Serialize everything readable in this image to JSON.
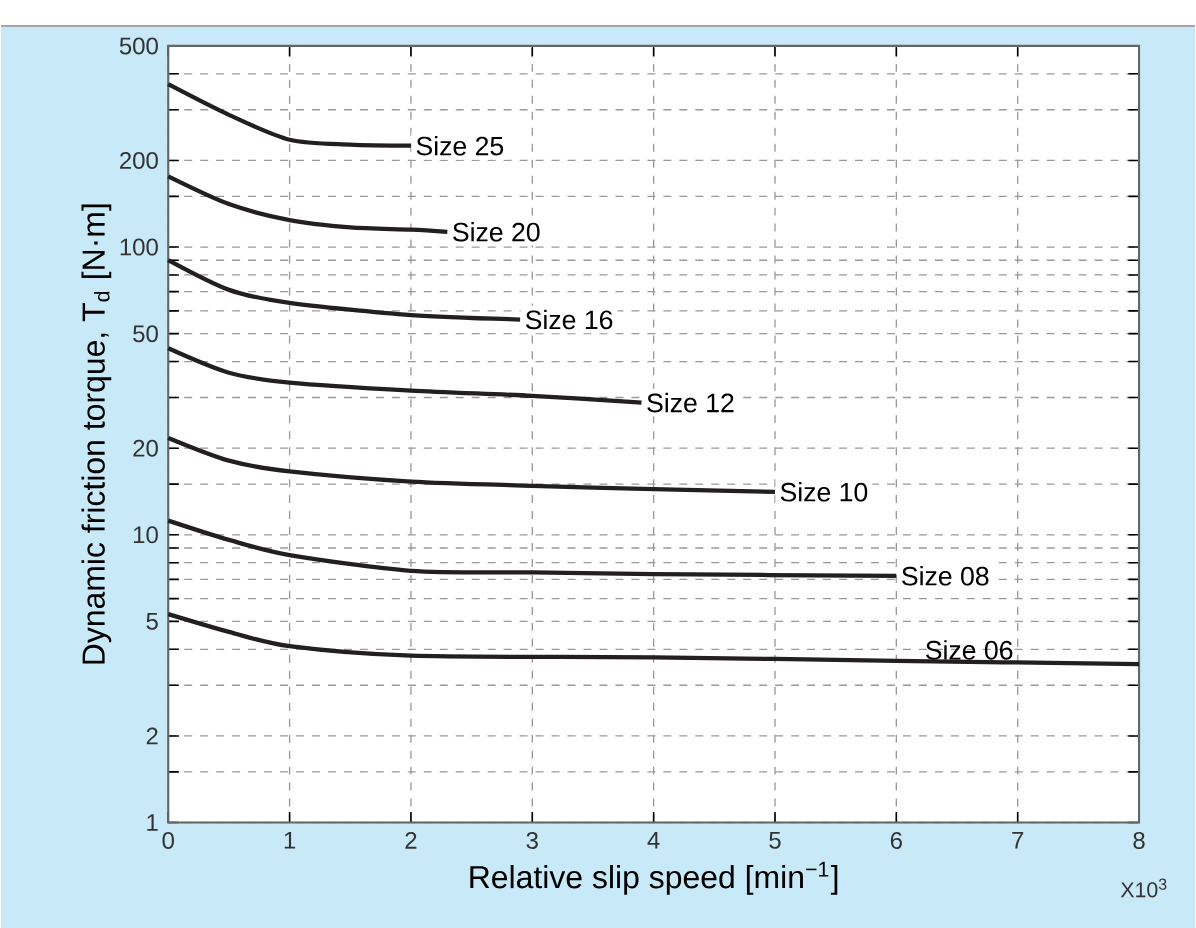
{
  "chart_data": {
    "type": "line",
    "xlabel": "Relative slip speed [min$^{−1}$]",
    "ylabel": "Dynamic friction torque, T$_{d}$ [N·m]",
    "log": "y",
    "grid": true,
    "xlim": [
      0,
      8
    ],
    "ylim": [
      1,
      500
    ],
    "xticks": [
      0,
      1,
      2,
      3,
      4,
      5,
      6,
      7,
      8
    ],
    "yticks": [
      1,
      {
        "value": 1.5,
        "label": null
      },
      2,
      {
        "value": 3,
        "label": null
      },
      {
        "value": 4,
        "label": null
      },
      5,
      {
        "value": 6,
        "label": null
      },
      {
        "value": 7,
        "label": null
      },
      {
        "value": 8,
        "label": null
      },
      {
        "value": 9,
        "label": null
      },
      10,
      {
        "value": 15,
        "label": null
      },
      20,
      {
        "value": 30,
        "label": null
      },
      {
        "value": 40,
        "label": null
      },
      50,
      {
        "value": 60,
        "label": null
      },
      {
        "value": 70,
        "label": null
      },
      {
        "value": 80,
        "label": null
      },
      {
        "value": 90,
        "label": null
      },
      100,
      {
        "value": 150,
        "label": null
      },
      200,
      {
        "value": 300,
        "label": null
      },
      {
        "value": 400,
        "label": null
      },
      500
    ],
    "annotations": [
      "X10$^{3}$"
    ],
    "series": [
      {
        "name": "Size 25",
        "color": "#231f20",
        "x": [
          0,
          0.5,
          1,
          1.5,
          2
        ],
        "values": [
          368,
          288,
          236,
          227,
          225
        ]
      },
      {
        "name": "Size 20",
        "color": "#231f20",
        "x": [
          0,
          0.5,
          1,
          1.5,
          2,
          2.3
        ],
        "values": [
          176,
          141,
          124,
          117,
          115,
          113
        ]
      },
      {
        "name": "Size 16",
        "color": "#231f20",
        "x": [
          0,
          0.5,
          1,
          2,
          2.9
        ],
        "values": [
          90,
          71,
          64,
          58,
          56
        ]
      },
      {
        "name": "Size 12",
        "color": "#231f20",
        "x": [
          0,
          0.5,
          1,
          2,
          3,
          3.9
        ],
        "values": [
          44.5,
          36.6,
          33.8,
          31.7,
          30.4,
          28.8
        ]
      },
      {
        "name": "Size 10",
        "color": "#231f20",
        "x": [
          0,
          0.5,
          1,
          2,
          3,
          4,
          5
        ],
        "values": [
          21.7,
          18.1,
          16.6,
          15.3,
          14.8,
          14.4,
          14.1
        ]
      },
      {
        "name": "Size 08",
        "color": "#231f20",
        "x": [
          0,
          0.5,
          1,
          2,
          3,
          4,
          6
        ],
        "values": [
          11.2,
          9.6,
          8.5,
          7.5,
          7.4,
          7.3,
          7.2
        ]
      },
      {
        "name": "Size 06",
        "color": "#231f20",
        "x": [
          0,
          0.5,
          1,
          2,
          4,
          6,
          8
        ],
        "values": [
          5.3,
          4.6,
          4.1,
          3.8,
          3.75,
          3.65,
          3.55
        ]
      }
    ]
  }
}
